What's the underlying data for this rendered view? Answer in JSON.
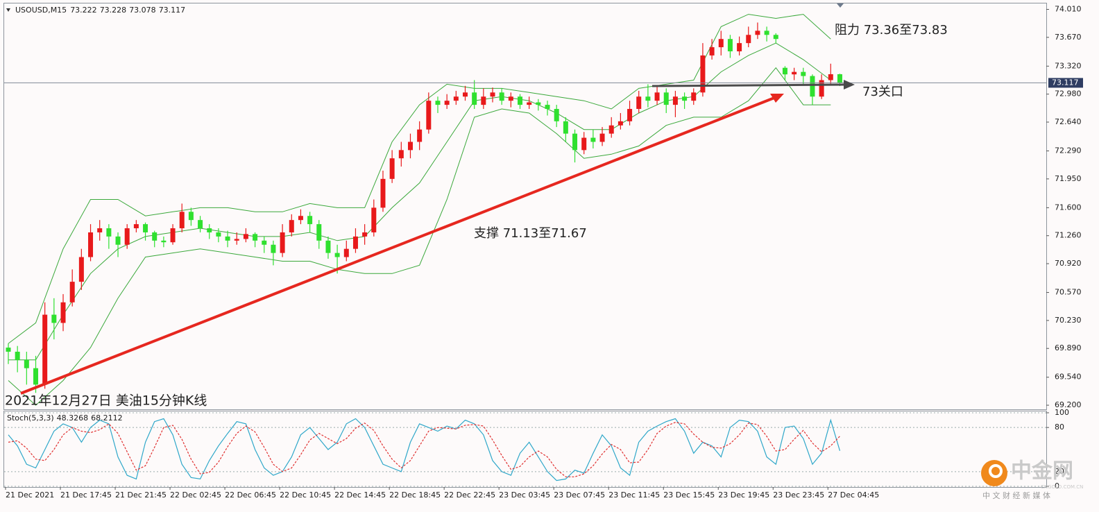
{
  "chart_data": [
    {
      "type": "candlestick",
      "title": "USOUSD,M15",
      "up_color": "#e8191b",
      "down_color": "#2fe02f",
      "grid": false,
      "ylim": [
        69.15,
        74.09
      ],
      "yticks": [
        {
          "value": 74.01,
          "label": "74.010"
        },
        {
          "value": 73.67,
          "label": "73.670"
        },
        {
          "value": 73.32,
          "label": "73.320"
        },
        {
          "value": 72.98,
          "label": "72.980"
        },
        {
          "value": 72.64,
          "label": "72.640"
        },
        {
          "value": 72.29,
          "label": "72.290"
        },
        {
          "value": 71.95,
          "label": "71.950"
        },
        {
          "value": 71.6,
          "label": "71.600"
        },
        {
          "value": 71.26,
          "label": "71.260"
        },
        {
          "value": 70.92,
          "label": "70.920"
        },
        {
          "value": 70.57,
          "label": "70.570"
        },
        {
          "value": 70.23,
          "label": "70.230"
        },
        {
          "value": 69.89,
          "label": "69.890"
        },
        {
          "value": 69.54,
          "label": "69.540"
        },
        {
          "value": 69.2,
          "label": "69.200"
        }
      ],
      "xticks": [
        {
          "value": 0,
          "label": "21 Dec 2021"
        },
        {
          "value": 6,
          "label": "21 Dec 17:45"
        },
        {
          "value": 12,
          "label": "21 Dec 21:45"
        },
        {
          "value": 18,
          "label": "22 Dec 02:45"
        },
        {
          "value": 24,
          "label": "22 Dec 06:45"
        },
        {
          "value": 30,
          "label": "22 Dec 10:45"
        },
        {
          "value": 36,
          "label": "22 Dec 14:45"
        },
        {
          "value": 42,
          "label": "22 Dec 18:45"
        },
        {
          "value": 48,
          "label": "22 Dec 22:45"
        },
        {
          "value": 54,
          "label": "23 Dec 03:45"
        },
        {
          "value": 60,
          "label": "23 Dec 07:45"
        },
        {
          "value": 66,
          "label": "23 Dec 11:45"
        },
        {
          "value": 72,
          "label": "23 Dec 15:45"
        },
        {
          "value": 78,
          "label": "23 Dec 19:45"
        },
        {
          "value": 84,
          "label": "23 Dec 23:45"
        },
        {
          "value": 90,
          "label": "27 Dec 04:45"
        }
      ],
      "open": [
        69.9,
        69.85,
        69.75,
        69.65,
        69.45,
        70.3,
        70.2,
        70.45,
        70.7,
        71.0,
        71.3,
        71.35,
        71.25,
        71.15,
        71.35,
        71.4,
        71.3,
        71.2,
        71.18,
        71.35,
        71.55,
        71.45,
        71.35,
        71.3,
        71.25,
        71.2,
        71.22,
        71.28,
        71.2,
        71.15,
        71.05,
        71.3,
        71.45,
        71.5,
        71.4,
        71.2,
        71.05,
        71.0,
        71.1,
        71.25,
        71.3,
        71.6,
        71.95,
        72.2,
        72.3,
        72.4,
        72.55,
        72.9,
        72.85,
        72.9,
        72.95,
        73.0,
        72.85,
        72.95,
        73.0,
        72.9,
        72.95,
        72.85,
        72.88,
        72.85,
        72.8,
        72.65,
        72.5,
        72.3,
        72.45,
        72.4,
        72.5,
        72.6,
        72.65,
        72.8,
        72.95,
        72.9,
        73.0,
        72.85,
        72.95,
        72.9,
        73.0,
        73.45,
        73.55,
        73.65,
        73.5,
        73.6,
        73.7,
        73.75,
        73.7,
        73.3,
        73.22,
        73.25,
        73.2,
        72.95,
        73.15,
        73.222
      ],
      "high": [
        69.95,
        69.92,
        69.85,
        69.8,
        70.45,
        70.5,
        70.55,
        70.85,
        71.1,
        71.4,
        71.45,
        71.4,
        71.3,
        71.4,
        71.45,
        71.42,
        71.32,
        71.25,
        71.4,
        71.65,
        71.6,
        71.5,
        71.4,
        71.35,
        71.32,
        71.3,
        71.35,
        71.3,
        71.25,
        71.2,
        71.4,
        71.52,
        71.58,
        71.55,
        71.45,
        71.25,
        71.15,
        71.2,
        71.35,
        71.4,
        71.7,
        72.05,
        72.3,
        72.4,
        72.5,
        72.65,
        73.0,
        72.95,
        72.98,
        73.02,
        73.08,
        73.15,
        73.05,
        73.06,
        73.05,
        73.0,
        72.98,
        72.95,
        72.92,
        72.9,
        72.85,
        72.7,
        72.55,
        72.52,
        72.55,
        72.58,
        72.7,
        72.75,
        72.9,
        73.02,
        73.1,
        73.08,
        73.05,
        73.02,
        73.0,
        73.05,
        73.6,
        73.65,
        73.75,
        73.7,
        73.68,
        73.8,
        73.85,
        73.8,
        73.72,
        73.32,
        73.3,
        73.3,
        73.22,
        73.22,
        73.35,
        73.228
      ],
      "low": [
        69.7,
        69.6,
        69.45,
        69.35,
        69.4,
        70.0,
        70.1,
        70.4,
        70.6,
        70.95,
        71.2,
        71.1,
        71.0,
        71.1,
        71.3,
        71.2,
        71.12,
        71.12,
        71.15,
        71.3,
        71.38,
        71.3,
        71.22,
        71.18,
        71.12,
        71.15,
        71.18,
        71.12,
        71.05,
        70.9,
        71.0,
        71.25,
        71.4,
        71.3,
        71.1,
        70.98,
        70.8,
        70.95,
        71.05,
        71.15,
        71.25,
        71.55,
        71.9,
        72.1,
        72.2,
        72.3,
        72.5,
        72.75,
        72.8,
        72.85,
        72.9,
        72.8,
        72.8,
        72.88,
        72.85,
        72.82,
        72.8,
        72.8,
        72.78,
        72.72,
        72.58,
        72.4,
        72.15,
        72.25,
        72.32,
        72.35,
        72.45,
        72.55,
        72.6,
        72.75,
        72.82,
        72.85,
        72.75,
        72.7,
        72.8,
        72.85,
        72.95,
        73.4,
        73.45,
        73.42,
        73.45,
        73.55,
        73.65,
        73.62,
        73.6,
        73.15,
        73.15,
        73.1,
        72.85,
        72.92,
        73.1,
        73.078
      ],
      "close": [
        69.85,
        69.75,
        69.65,
        69.45,
        70.3,
        70.2,
        70.45,
        70.7,
        71.0,
        71.3,
        71.35,
        71.25,
        71.15,
        71.35,
        71.4,
        71.3,
        71.2,
        71.18,
        71.35,
        71.55,
        71.45,
        71.35,
        71.3,
        71.25,
        71.2,
        71.22,
        71.28,
        71.2,
        71.15,
        71.05,
        71.3,
        71.45,
        71.5,
        71.4,
        71.2,
        71.05,
        71.0,
        71.1,
        71.25,
        71.3,
        71.6,
        71.95,
        72.2,
        72.3,
        72.4,
        72.55,
        72.9,
        72.85,
        72.9,
        72.95,
        73.0,
        72.85,
        72.95,
        73.0,
        72.9,
        72.95,
        72.85,
        72.88,
        72.85,
        72.8,
        72.65,
        72.5,
        72.3,
        72.45,
        72.4,
        72.5,
        72.6,
        72.65,
        72.8,
        72.95,
        72.9,
        73.0,
        72.85,
        72.95,
        72.9,
        73.0,
        73.45,
        73.55,
        73.65,
        73.5,
        73.6,
        73.7,
        73.75,
        73.7,
        73.65,
        73.22,
        73.25,
        73.2,
        72.95,
        73.15,
        73.222,
        73.117
      ],
      "bands": {
        "color": "#3aa83a",
        "x": [
          0,
          3,
          6,
          9,
          12,
          15,
          18,
          21,
          24,
          27,
          30,
          33,
          36,
          39,
          42,
          45,
          48,
          51,
          54,
          57,
          60,
          63,
          66,
          69,
          72,
          75,
          78,
          81,
          84,
          87,
          90
        ],
        "upper": [
          69.95,
          70.2,
          71.1,
          71.7,
          71.7,
          71.5,
          71.55,
          71.6,
          71.6,
          71.55,
          71.55,
          71.65,
          71.6,
          71.6,
          72.4,
          72.85,
          73.1,
          73.05,
          73.05,
          73.0,
          72.95,
          72.9,
          72.8,
          73.05,
          73.1,
          73.15,
          73.8,
          73.95,
          73.9,
          73.95,
          73.65
        ],
        "middle": [
          69.75,
          69.75,
          70.3,
          70.8,
          71.1,
          71.25,
          71.3,
          71.35,
          71.3,
          71.25,
          71.25,
          71.3,
          71.2,
          71.25,
          71.6,
          71.9,
          72.4,
          72.9,
          72.95,
          72.9,
          72.75,
          72.55,
          72.55,
          72.75,
          72.9,
          72.95,
          73.25,
          73.45,
          73.6,
          73.4,
          73.15
        ],
        "lower": [
          69.5,
          69.2,
          69.5,
          69.9,
          70.5,
          71.0,
          71.05,
          71.1,
          71.05,
          71.0,
          70.95,
          70.95,
          70.85,
          70.8,
          70.8,
          70.9,
          71.7,
          72.7,
          72.8,
          72.75,
          72.5,
          72.2,
          72.25,
          72.35,
          72.6,
          72.7,
          72.7,
          72.9,
          73.3,
          72.85,
          72.85
        ]
      },
      "annotations": [
        "阻力 73.36至73.83",
        "73关口",
        "支撑 71.13至71.67",
        "2021年12月27日 美油15分钟K线"
      ],
      "watermark": {
        "title": "中金网",
        "url": "CNGOLD.COM.CN",
        "tagline": "中 文 财 经 新 媒 体"
      }
    },
    {
      "type": "line",
      "title": "Stoch(5,3,3)",
      "ylim": [
        -0.9,
        102.8
      ],
      "yticks": [
        100,
        80,
        20,
        0
      ],
      "series": [
        {
          "color": "#2ea7c9",
          "values": [
            70,
            55,
            30,
            25,
            50,
            75,
            85,
            80,
            60,
            80,
            90,
            85,
            40,
            15,
            10,
            60,
            88,
            92,
            70,
            30,
            12,
            10,
            35,
            55,
            72,
            88,
            85,
            50,
            25,
            15,
            20,
            40,
            70,
            80,
            65,
            50,
            60,
            85,
            92,
            80,
            55,
            30,
            25,
            20,
            60,
            85,
            80,
            75,
            82,
            78,
            90,
            85,
            70,
            35,
            20,
            15,
            45,
            60,
            40,
            20,
            8,
            10,
            22,
            18,
            45,
            70,
            55,
            25,
            15,
            60,
            75,
            82,
            88,
            92,
            75,
            45,
            60,
            55,
            40,
            80,
            90,
            88,
            75,
            40,
            30,
            80,
            82,
            65,
            30,
            45,
            90,
            48.3268
          ]
        },
        {
          "color": "#e03030",
          "dashed": true,
          "values": [
            60,
            62,
            52,
            37,
            35,
            50,
            70,
            80,
            75,
            73,
            77,
            85,
            72,
            47,
            22,
            28,
            53,
            80,
            83,
            64,
            37,
            17,
            19,
            33,
            54,
            72,
            82,
            74,
            53,
            30,
            20,
            25,
            43,
            63,
            72,
            65,
            58,
            65,
            79,
            86,
            76,
            55,
            37,
            25,
            35,
            55,
            75,
            80,
            79,
            78,
            83,
            84,
            82,
            63,
            42,
            23,
            27,
            40,
            48,
            40,
            23,
            13,
            13,
            17,
            28,
            44,
            57,
            50,
            32,
            33,
            50,
            72,
            82,
            87,
            85,
            71,
            60,
            53,
            52,
            58,
            70,
            86,
            84,
            68,
            48,
            50,
            64,
            76,
            59,
            47,
            55,
            68.2112
          ]
        }
      ]
    }
  ]
}
